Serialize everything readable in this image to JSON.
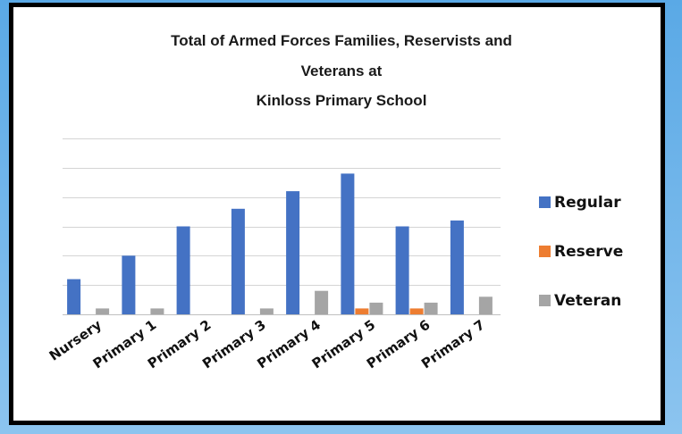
{
  "chart_data": {
    "type": "bar",
    "title_lines": [
      "Total of Armed Forces Families, Reservists and",
      "Veterans at",
      "Kinloss Primary School"
    ],
    "categories": [
      "Nursery",
      "Primary 1",
      "Primary 2",
      "Primary 3",
      "Primary 4",
      "Primary 5",
      "Primary 6",
      "Primary 7"
    ],
    "series": [
      {
        "name": "Regular",
        "color": "#4472c4",
        "values": [
          6,
          10,
          15,
          18,
          21,
          24,
          15,
          16
        ]
      },
      {
        "name": "Reserve",
        "color": "#ed7d31",
        "values": [
          0,
          0,
          0,
          0,
          0,
          1,
          1,
          0
        ]
      },
      {
        "name": "Veteran",
        "color": "#a5a5a5",
        "values": [
          1,
          1,
          0,
          1,
          4,
          2,
          2,
          3
        ]
      }
    ],
    "ylim": [
      0,
      30
    ],
    "gridlines": [
      0,
      5,
      10,
      15,
      20,
      25,
      30
    ],
    "grid": true,
    "y_tick_labels_shown": false,
    "legend_position": "right"
  }
}
